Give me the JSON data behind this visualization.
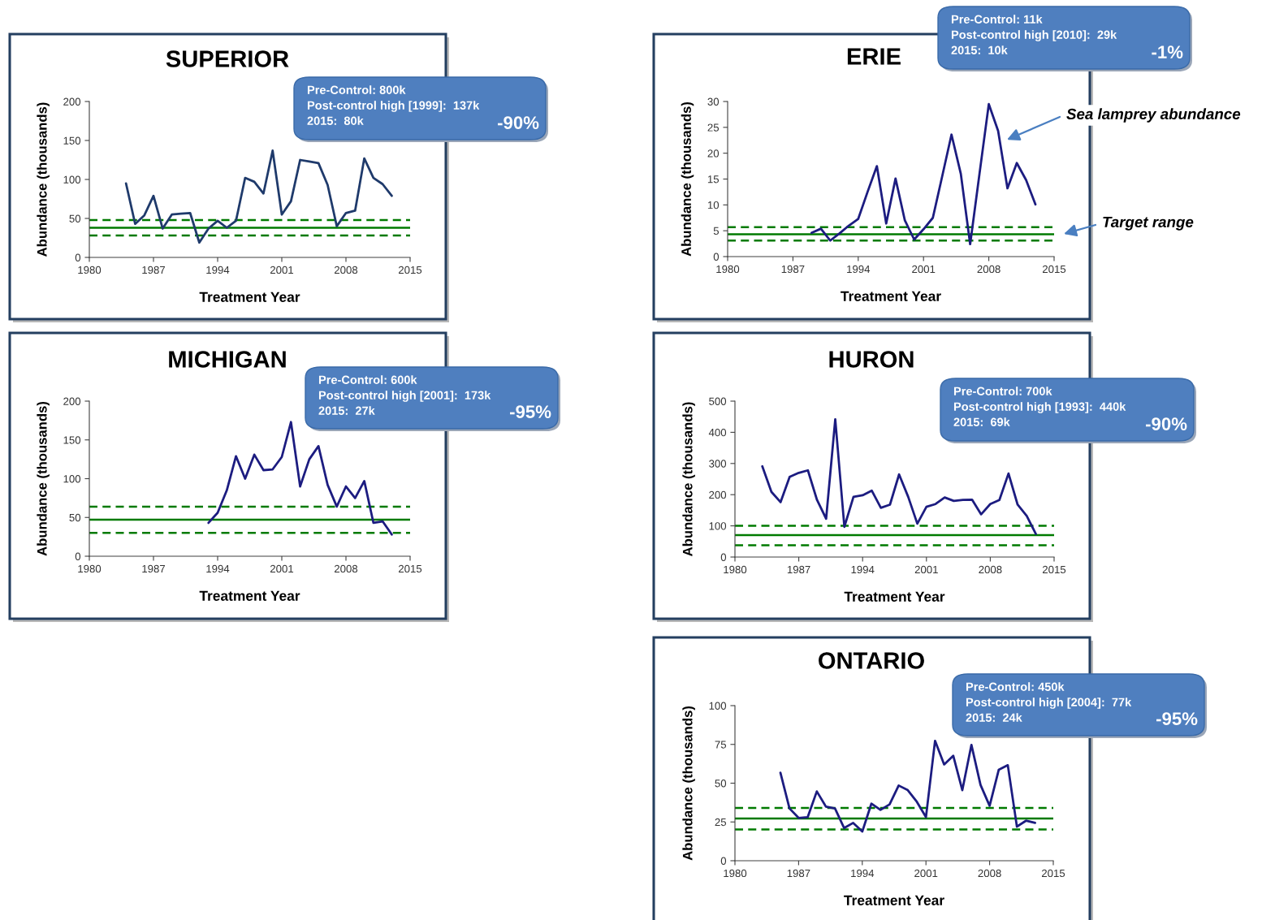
{
  "chart_data": [
    {
      "type": "line",
      "title": "SUPERIOR",
      "xlabel": "Treatment Year",
      "ylabel": "Abundance (thousands)",
      "xlim": [
        1980,
        2015
      ],
      "xticks": [
        1980,
        1987,
        1994,
        2001,
        2008,
        2015
      ],
      "ylim": [
        0,
        200
      ],
      "yticks": [
        0,
        50,
        100,
        150,
        200
      ],
      "grid": false,
      "legend": false,
      "series": [
        {
          "color": "#1f3a6b",
          "x": [
            1984,
            1985,
            1986,
            1987,
            1988,
            1989,
            1990,
            1991,
            1992,
            1993,
            1994,
            1995,
            1996,
            1997,
            1998,
            1999,
            2000,
            2001,
            2002,
            2003,
            2004,
            2005,
            2006,
            2007,
            2008,
            2009,
            2010,
            2011,
            2012,
            2013
          ],
          "values": [
            95,
            43,
            54,
            79,
            37,
            55,
            56,
            57,
            19,
            37,
            47,
            38,
            47,
            102,
            97,
            82,
            137,
            55,
            72,
            125,
            123,
            121,
            93,
            40,
            57,
            60,
            127,
            102,
            94,
            79
          ]
        }
      ],
      "ref_lines": [
        {
          "axis": "y",
          "value": 48,
          "color": "#007a00",
          "line_style": "dashed"
        },
        {
          "axis": "y",
          "value": 38,
          "color": "#007a00",
          "line_style": "solid"
        },
        {
          "axis": "y",
          "value": 28,
          "color": "#007a00",
          "line_style": "dashed"
        }
      ],
      "annotations": [
        "Pre-Control: 800k",
        "Post-control high [1999]:  137k",
        "2015:  80k",
        "-90%"
      ]
    },
    {
      "type": "line",
      "title": "ERIE",
      "xlabel": "Treatment Year",
      "ylabel": "Abundance (thousands)",
      "xlim": [
        1980,
        2015
      ],
      "xticks": [
        1980,
        1987,
        1994,
        2001,
        2008,
        2015
      ],
      "ylim": [
        0,
        30
      ],
      "yticks": [
        0,
        5,
        10,
        15,
        20,
        25,
        30
      ],
      "grid": false,
      "legend": false,
      "series": [
        {
          "color": "#1c1c80",
          "x": [
            1989,
            1990,
            1991,
            1992,
            1993,
            1994,
            1995,
            1996,
            1997,
            1998,
            1999,
            2000,
            2001,
            2002,
            2003,
            2004,
            2005,
            2006,
            2007,
            2008,
            2009,
            2010,
            2011,
            2012,
            2013
          ],
          "values": [
            4.6,
            5.4,
            3.1,
            4.5,
            6.0,
            7.3,
            12.5,
            17.5,
            6.4,
            15.1,
            7.0,
            3.3,
            5.3,
            7.5,
            15.5,
            23.6,
            16.0,
            2.4,
            16.0,
            29.5,
            24.3,
            13.2,
            18.1,
            14.8,
            10.1
          ]
        }
      ],
      "ref_lines": [
        {
          "axis": "y",
          "value": 5.7,
          "color": "#007a00",
          "line_style": "dashed"
        },
        {
          "axis": "y",
          "value": 4.3,
          "color": "#007a00",
          "line_style": "solid"
        },
        {
          "axis": "y",
          "value": 3.1,
          "color": "#007a00",
          "line_style": "dashed"
        }
      ],
      "annotations": [
        "Pre-Control: 11k",
        "Post-control high [2010]:  29k",
        "2015:  10k",
        "-1%",
        "Sea lamprey abundance",
        "Target range"
      ]
    },
    {
      "type": "line",
      "title": "MICHIGAN",
      "xlabel": "Treatment Year",
      "ylabel": "Abundance (thousands)",
      "xlim": [
        1980,
        2015
      ],
      "xticks": [
        1980,
        1987,
        1994,
        2001,
        2008,
        2015
      ],
      "ylim": [
        0,
        200
      ],
      "yticks": [
        0,
        50,
        100,
        150,
        200
      ],
      "grid": false,
      "legend": false,
      "series": [
        {
          "color": "#1c1c80",
          "x": [
            1993,
            1994,
            1995,
            1996,
            1997,
            1998,
            1999,
            2000,
            2001,
            2002,
            2003,
            2004,
            2005,
            2006,
            2007,
            2008,
            2009,
            2010,
            2011,
            2012,
            2013
          ],
          "values": [
            43,
            56,
            85,
            129,
            100,
            131,
            111,
            112,
            128,
            173,
            90,
            125,
            142,
            92,
            64,
            90,
            75,
            97,
            43,
            45,
            28
          ]
        }
      ],
      "ref_lines": [
        {
          "axis": "y",
          "value": 64,
          "color": "#007a00",
          "line_style": "dashed"
        },
        {
          "axis": "y",
          "value": 47,
          "color": "#007a00",
          "line_style": "solid"
        },
        {
          "axis": "y",
          "value": 30,
          "color": "#007a00",
          "line_style": "dashed"
        }
      ],
      "annotations": [
        "Pre-Control: 600k",
        "Post-control high [2001]:  173k",
        "2015:  27k",
        "-95%"
      ]
    },
    {
      "type": "line",
      "title": "HURON",
      "xlabel": "Treatment Year",
      "ylabel": "Abundance (thousands)",
      "xlim": [
        1980,
        2015
      ],
      "xticks": [
        1980,
        1987,
        1994,
        2001,
        2008,
        2015
      ],
      "ylim": [
        0,
        500
      ],
      "yticks": [
        0,
        100,
        200,
        300,
        400,
        500
      ],
      "grid": false,
      "legend": false,
      "series": [
        {
          "color": "#1c1c80",
          "x": [
            1983,
            1984,
            1985,
            1986,
            1987,
            1988,
            1989,
            1990,
            1991,
            1992,
            1993,
            1994,
            1995,
            1996,
            1997,
            1998,
            1999,
            2000,
            2001,
            2002,
            2003,
            2004,
            2005,
            2006,
            2007,
            2008,
            2009,
            2010,
            2011,
            2012,
            2013
          ],
          "values": [
            291,
            209,
            176,
            257,
            270,
            278,
            183,
            123,
            442,
            97,
            193,
            198,
            213,
            158,
            168,
            265,
            193,
            107,
            161,
            170,
            191,
            180,
            183,
            184,
            137,
            170,
            183,
            268,
            168,
            132,
            74
          ]
        }
      ],
      "ref_lines": [
        {
          "axis": "y",
          "value": 100,
          "color": "#007a00",
          "line_style": "dashed"
        },
        {
          "axis": "y",
          "value": 70,
          "color": "#007a00",
          "line_style": "solid"
        },
        {
          "axis": "y",
          "value": 38,
          "color": "#007a00",
          "line_style": "dashed"
        }
      ],
      "annotations": [
        "Pre-Control: 700k",
        "Post-control high [1993]:  440k",
        "2015:  69k",
        "-90%"
      ]
    },
    {
      "type": "line",
      "title": "ONTARIO",
      "xlabel": "Treatment Year",
      "ylabel": "Abundance (thousands)",
      "xlim": [
        1980,
        2015
      ],
      "xticks": [
        1980,
        1987,
        1994,
        2001,
        2008,
        2015
      ],
      "ylim": [
        0,
        100
      ],
      "yticks": [
        0,
        25,
        50,
        75,
        100
      ],
      "grid": false,
      "legend": false,
      "series": [
        {
          "color": "#1c1c80",
          "x": [
            1985,
            1986,
            1987,
            1988,
            1989,
            1990,
            1991,
            1992,
            1993,
            1994,
            1995,
            1996,
            1997,
            1998,
            1999,
            2000,
            2001,
            2002,
            2003,
            2004,
            2005,
            2006,
            2007,
            2008,
            2009,
            2010,
            2011,
            2012,
            2013
          ],
          "values": [
            56.7,
            33.7,
            27.6,
            28.1,
            44.7,
            34.9,
            33.7,
            21.1,
            24.4,
            18.8,
            36.8,
            32.8,
            36.3,
            48.5,
            45.5,
            38.0,
            28.1,
            77.3,
            62.1,
            67.7,
            45.5,
            74.7,
            48.9,
            35.4,
            58.6,
            61.6,
            22.0,
            25.8,
            24.4
          ]
        }
      ],
      "ref_lines": [
        {
          "axis": "y",
          "value": 34,
          "color": "#007a00",
          "line_style": "dashed"
        },
        {
          "axis": "y",
          "value": 27.2,
          "color": "#007a00",
          "line_style": "solid"
        },
        {
          "axis": "y",
          "value": 20.1,
          "color": "#007a00",
          "line_style": "dashed"
        }
      ],
      "annotations": [
        "Pre-Control: 450k",
        "Post-control high [2004]:  77k",
        "2015:  24k",
        "-95%"
      ]
    }
  ]
}
